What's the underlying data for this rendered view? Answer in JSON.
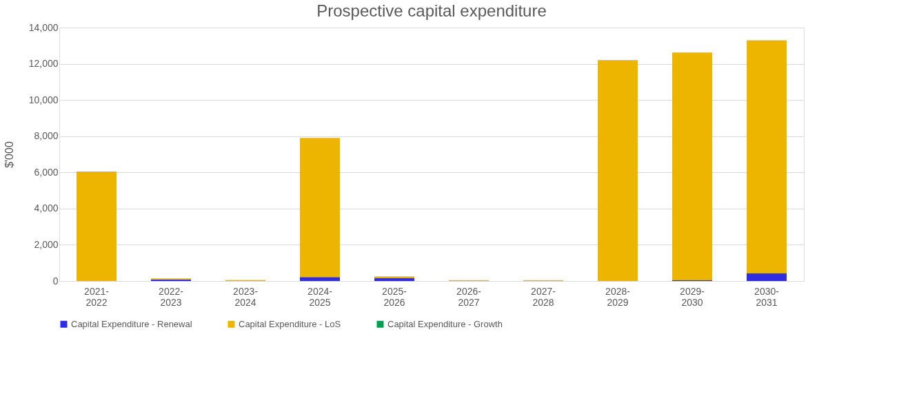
{
  "chart_data": {
    "type": "bar",
    "title": "Prospective capital expenditure",
    "ylabel": "$'000",
    "categories": [
      "2021-\n2022",
      "2022-\n2023",
      "2023-\n2024",
      "2024-\n2025",
      "2025-\n2026",
      "2026-\n2027",
      "2027-\n2028",
      "2028-\n2029",
      "2029-\n2030",
      "2030-\n2031"
    ],
    "stacked": true,
    "series": [
      {
        "name": "Capital Expenditure - Renewal",
        "color": "#2e2ee0",
        "values": [
          0,
          90,
          0,
          220,
          170,
          0,
          0,
          0,
          60,
          440
        ]
      },
      {
        "name": "Capital Expenditure - LoS",
        "color": "#edb500",
        "values": [
          6050,
          50,
          60,
          7680,
          90,
          50,
          50,
          12200,
          12560,
          12860
        ]
      },
      {
        "name": "Capital Expenditure - Growth",
        "color": "#00a050",
        "values": [
          0,
          0,
          0,
          0,
          0,
          0,
          0,
          0,
          0,
          0
        ]
      }
    ],
    "ylim": [
      0,
      14000
    ],
    "yticks": [
      0,
      {
        "value": 2000,
        "label": "2,000"
      },
      {
        "value": 4000,
        "label": "4,000"
      },
      {
        "value": 6000,
        "label": "6,000"
      },
      {
        "value": 8000,
        "label": "8,000"
      },
      {
        "value": 10000,
        "label": "10,000"
      },
      {
        "value": 12000,
        "label": "12,000"
      },
      {
        "value": 14000,
        "label": "14,000"
      }
    ],
    "grid": "y",
    "legend": "bottom"
  }
}
